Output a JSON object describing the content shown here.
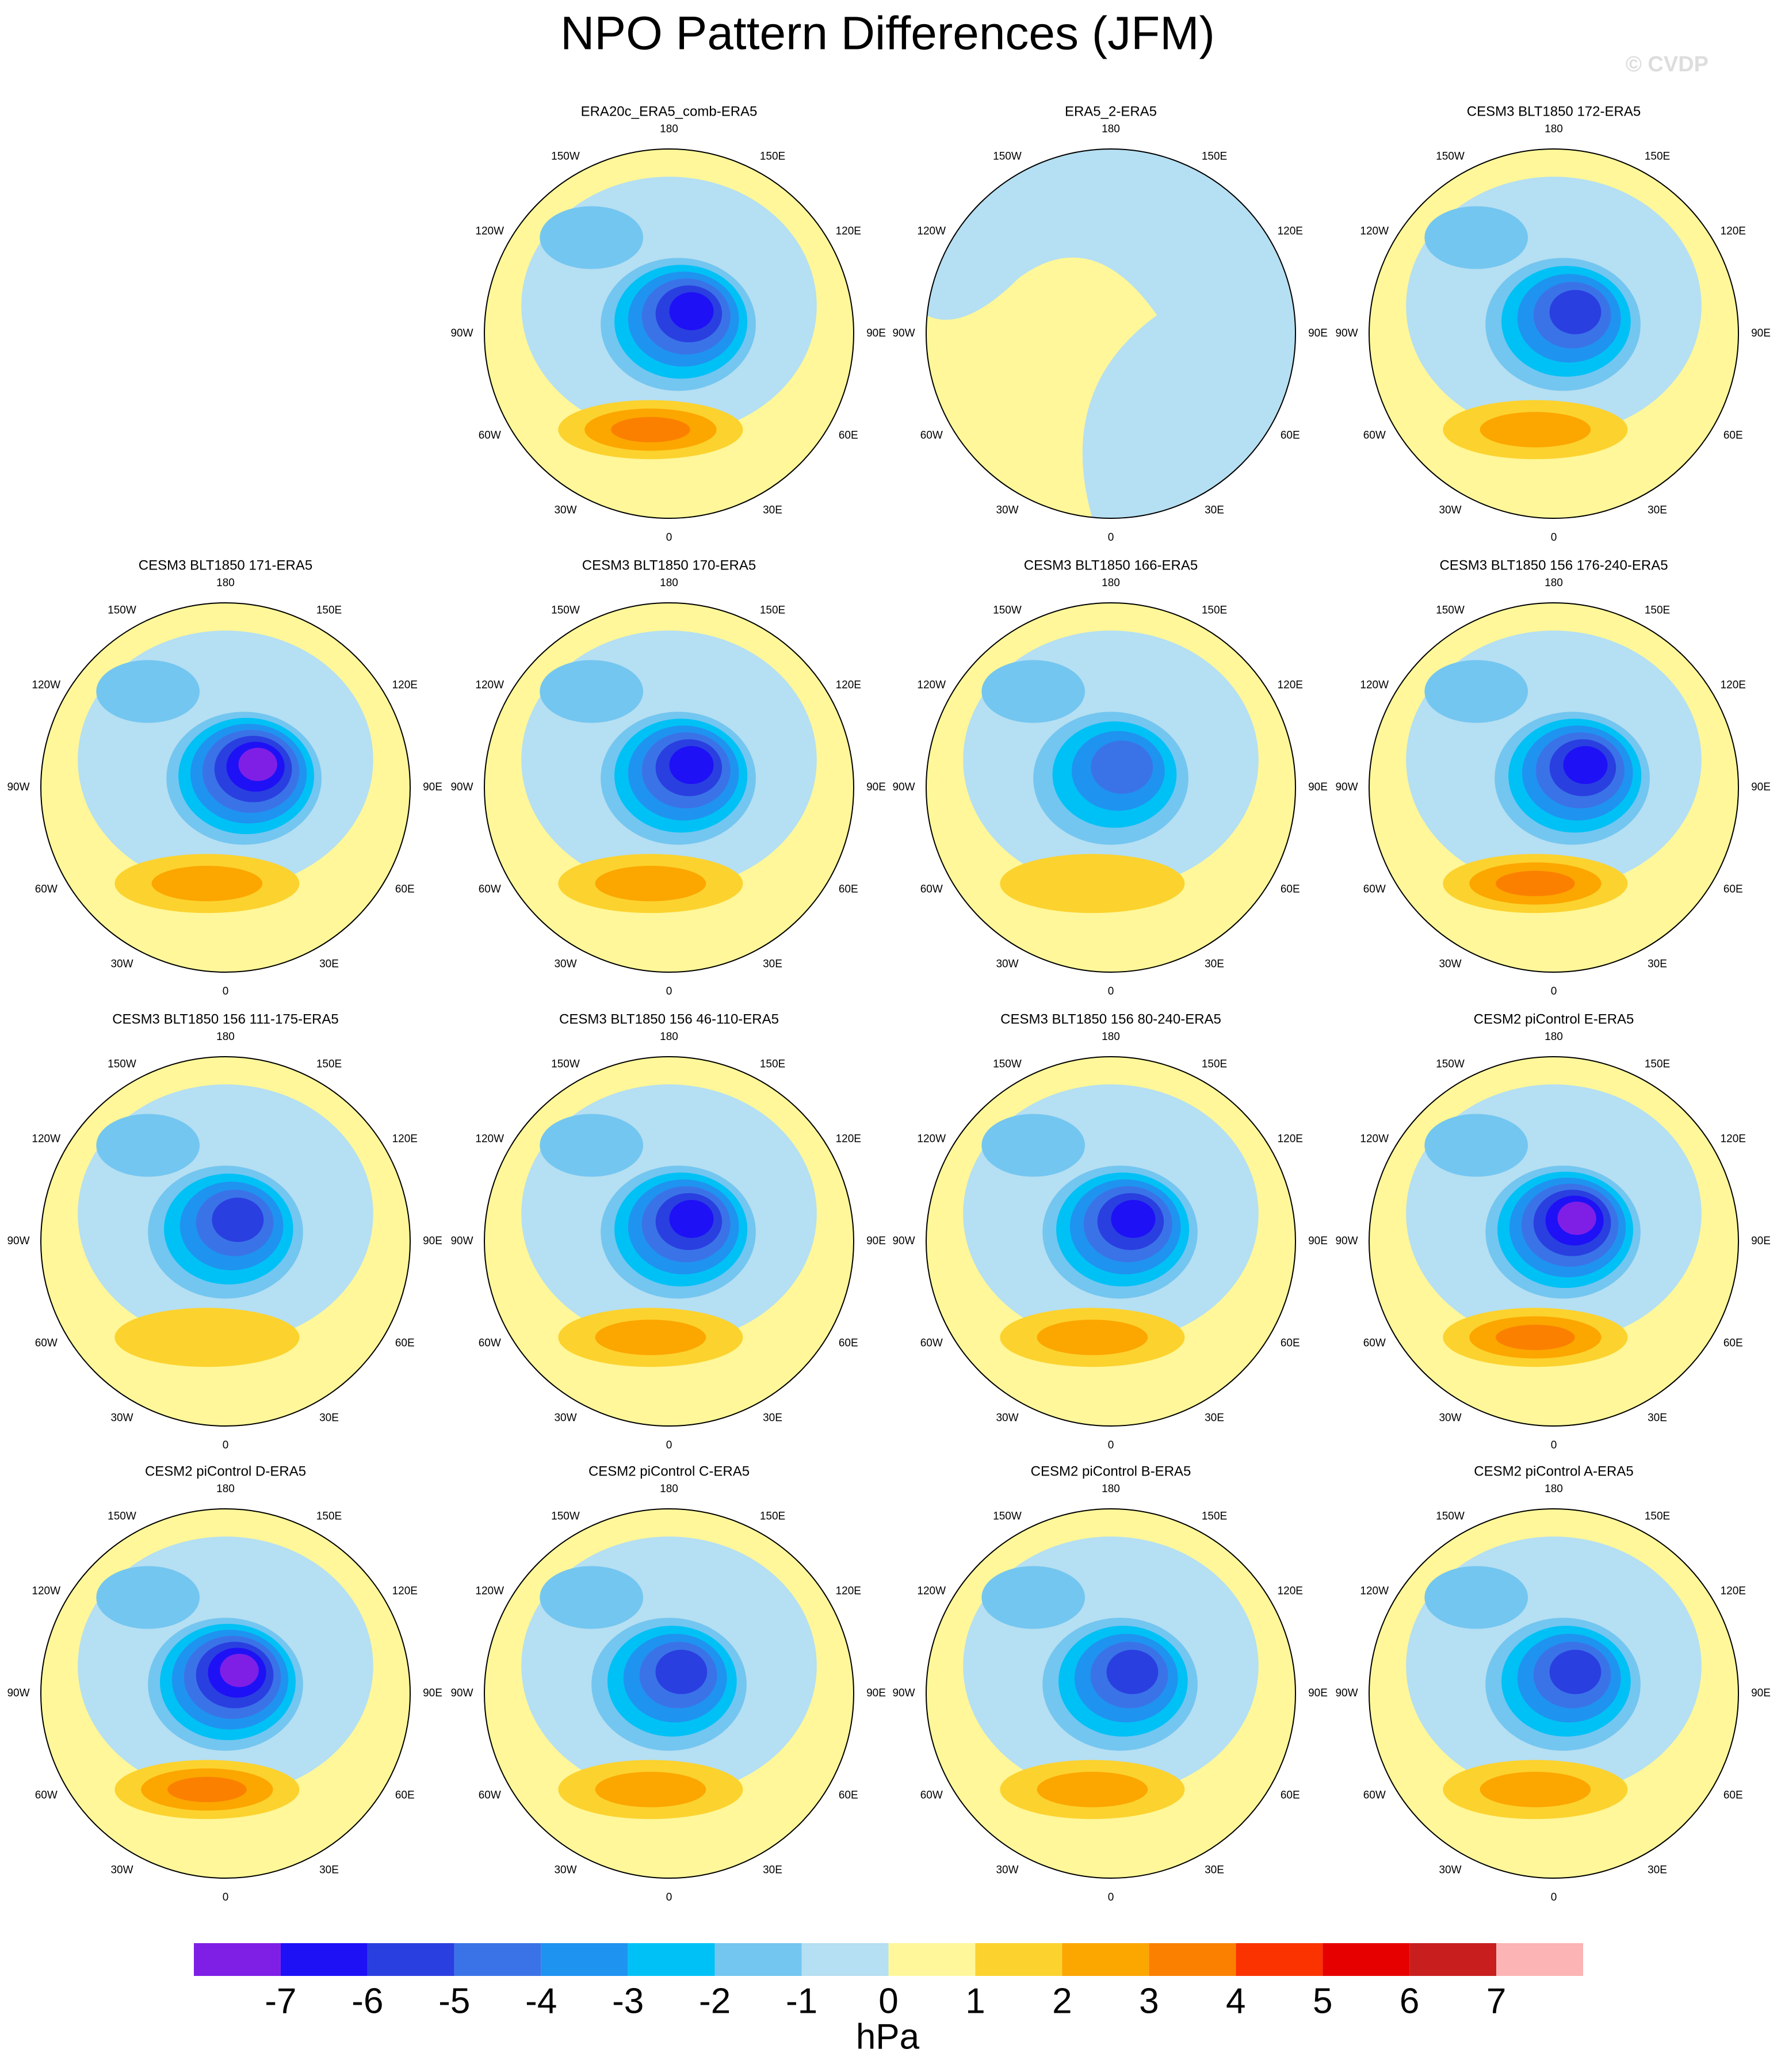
{
  "title": "NPO Pattern Differences (JFM)",
  "watermark": "© CVDP",
  "panels": [
    {
      "title": "ERA20c_ERA5_comb-ERA5"
    },
    {
      "title": "ERA5_2-ERA5"
    },
    {
      "title": "CESM3 BLT1850 172-ERA5"
    },
    {
      "title": "CESM3 BLT1850 171-ERA5"
    },
    {
      "title": "CESM3 BLT1850 170-ERA5"
    },
    {
      "title": "CESM3 BLT1850 166-ERA5"
    },
    {
      "title": "CESM3 BLT1850 156 176-240-ERA5"
    },
    {
      "title": "CESM3 BLT1850 156 111-175-ERA5"
    },
    {
      "title": "CESM3 BLT1850 156 46-110-ERA5"
    },
    {
      "title": "CESM3 BLT1850 156 80-240-ERA5"
    },
    {
      "title": "CESM2 piControl E-ERA5"
    },
    {
      "title": "CESM2 piControl D-ERA5"
    },
    {
      "title": "CESM2 piControl C-ERA5"
    },
    {
      "title": "CESM2 piControl B-ERA5"
    },
    {
      "title": "CESM2 piControl A-ERA5"
    }
  ],
  "lon_labels": [
    "180",
    "150E",
    "120E",
    "90E",
    "60E",
    "30E",
    "0",
    "30W",
    "60W",
    "90W",
    "120W",
    "150W"
  ],
  "colorbar": {
    "ticks": [
      -7,
      -6,
      -5,
      -4,
      -3,
      -2,
      -1,
      0,
      1,
      2,
      3,
      4,
      5,
      6,
      7
    ],
    "colors": [
      "#7f1fe6",
      "#1e11f5",
      "#2a3fe0",
      "#3a73e8",
      "#1f93f0",
      "#00c1f5",
      "#73c6f0",
      "#b5dff2",
      "#fff799",
      "#fcd22e",
      "#fca600",
      "#fb8000",
      "#fb3300",
      "#e60000",
      "#c81e1e",
      "#fdb4b4"
    ],
    "label": "hPa"
  }
}
